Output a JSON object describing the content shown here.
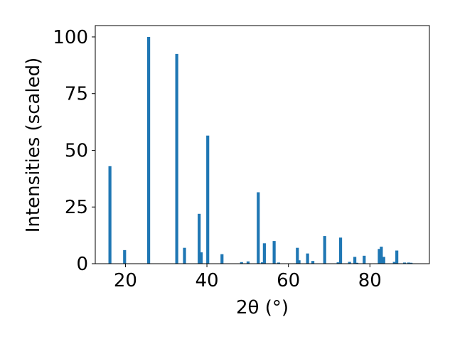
{
  "chart_data": {
    "type": "bar",
    "title": "",
    "xlabel": "2θ (°)",
    "ylabel": "Intensities (scaled)",
    "xlim": [
      12.6,
      94.6
    ],
    "ylim": [
      0,
      105
    ],
    "xticks": [
      20,
      40,
      60,
      80
    ],
    "yticks": [
      0,
      25,
      50,
      75,
      100
    ],
    "grid": false,
    "bar_color": "#1f77b4",
    "x": [
      16.2,
      19.8,
      25.7,
      32.6,
      34.5,
      38.1,
      38.6,
      40.2,
      43.7,
      48.5,
      50.1,
      52.6,
      53.6,
      54.1,
      56.5,
      57.6,
      62.2,
      62.6,
      64.7,
      66.0,
      68.9,
      72.2,
      72.8,
      75.0,
      76.3,
      76.8,
      78.6,
      82.3,
      82.8,
      83.4,
      86.0,
      86.6,
      88.5,
      89.5,
      90.1
    ],
    "values": [
      43.0,
      6.0,
      100.0,
      92.5,
      7.0,
      22.0,
      5.0,
      56.5,
      4.2,
      0.7,
      1.0,
      31.5,
      0.6,
      9.0,
      10.0,
      0.5,
      7.0,
      1.5,
      4.5,
      1.2,
      12.2,
      0.6,
      11.5,
      0.8,
      3.0,
      0.4,
      3.5,
      6.5,
      7.5,
      3.0,
      0.8,
      5.8,
      0.5,
      0.5,
      0.4
    ]
  }
}
